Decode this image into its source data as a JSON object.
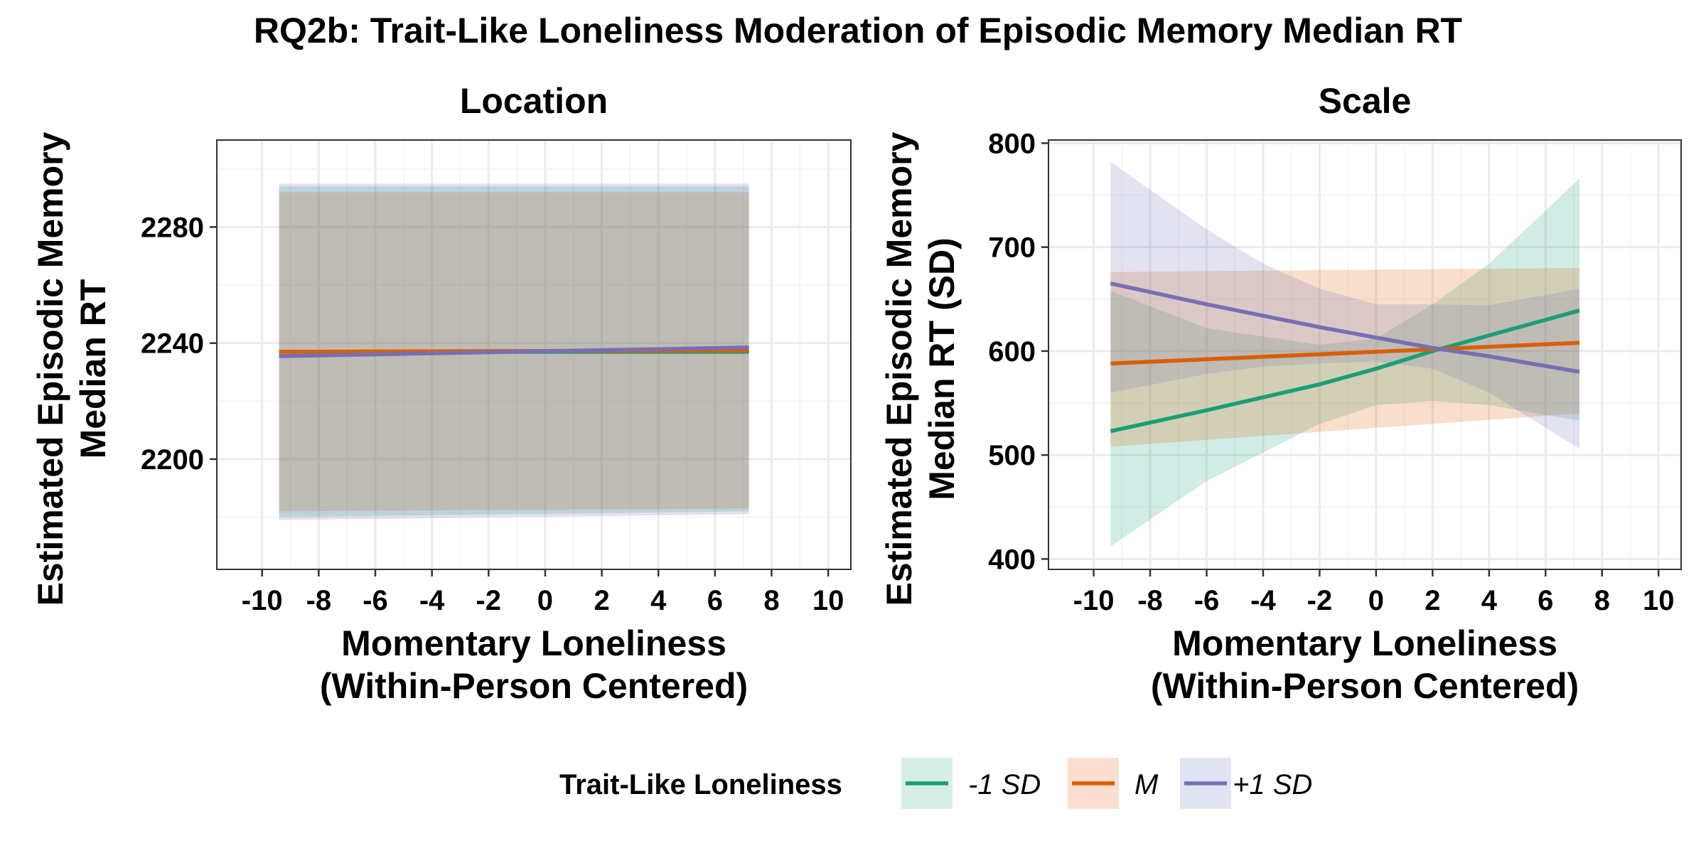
{
  "title": "RQ2b: Trait-Like Loneliness Moderation of Episodic Memory Median RT",
  "legend": {
    "title": "Trait-Like Loneliness",
    "position": "bottom",
    "entries": [
      {
        "label": "-1 SD",
        "color": "#1b9e77",
        "fill": "#d6efe5"
      },
      {
        "label": "M",
        "color": "#d95f02",
        "fill": "#fcdfd0"
      },
      {
        "label": "+1 SD",
        "color": "#7570b3",
        "fill": "#e0e4f2"
      }
    ]
  },
  "chart_data": [
    {
      "type": "line",
      "panel_title": "Location",
      "xlabel": "Momentary Loneliness\n(Within-Person Centered)",
      "ylabel": "Estimated Episodic Memory\nMedian RT",
      "xlim": [
        -11.6,
        10.8
      ],
      "ylim": [
        2162,
        2310
      ],
      "xticks": [
        -10,
        -8,
        -6,
        -4,
        -2,
        0,
        2,
        4,
        6,
        8,
        10
      ],
      "yticks": [
        2200,
        2240,
        2280
      ],
      "grid": true,
      "series": [
        {
          "name": "-1 SD",
          "x": [
            -9.4,
            7.2
          ],
          "y": [
            2237,
            2237
          ],
          "band_lower": [
            2180,
            2182
          ],
          "band_upper": [
            2294,
            2294
          ]
        },
        {
          "name": "M",
          "x": [
            -9.4,
            7.2
          ],
          "y": [
            2237,
            2237.5
          ],
          "band_lower": [
            2182,
            2183
          ],
          "band_upper": [
            2292,
            2292
          ]
        },
        {
          "name": "+1 SD",
          "x": [
            -9.4,
            7.2
          ],
          "y": [
            2235.5,
            2238.5
          ],
          "band_lower": [
            2179,
            2181
          ],
          "band_upper": [
            2295,
            2295
          ]
        }
      ]
    },
    {
      "type": "line",
      "panel_title": "Scale",
      "xlabel": "Momentary Loneliness\n(Within-Person Centered)",
      "ylabel": "Estimated Episodic Memory\nMedian RT (SD)",
      "xlim": [
        -11.6,
        10.8
      ],
      "ylim": [
        390,
        803
      ],
      "xticks": [
        -10,
        -8,
        -6,
        -4,
        -2,
        0,
        2,
        4,
        6,
        8,
        10
      ],
      "yticks": [
        400,
        500,
        600,
        700,
        800
      ],
      "grid": true,
      "series": [
        {
          "name": "-1 SD",
          "x": [
            -9.4,
            -6,
            -2,
            0,
            2,
            4,
            7.2
          ],
          "y": [
            523,
            543,
            568,
            583,
            600,
            615,
            639
          ],
          "band_lower": [
            412,
            475,
            530,
            548,
            552,
            548,
            533
          ],
          "band_upper": [
            658,
            622,
            606,
            612,
            645,
            684,
            766
          ]
        },
        {
          "name": "M",
          "x": [
            -9.4,
            7.2
          ],
          "y": [
            588,
            608
          ],
          "band_lower": [
            508,
            540
          ],
          "band_upper": [
            676,
            680
          ]
        },
        {
          "name": "+1 SD",
          "x": [
            -9.4,
            -6,
            -4,
            -2,
            0,
            2,
            4,
            7.2
          ],
          "y": [
            665,
            645,
            634,
            623,
            613,
            603,
            595,
            580
          ],
          "band_lower": [
            560,
            578,
            585,
            588,
            590,
            583,
            560,
            506
          ],
          "band_upper": [
            782,
            717,
            684,
            660,
            645,
            645,
            644,
            660
          ]
        }
      ]
    }
  ]
}
